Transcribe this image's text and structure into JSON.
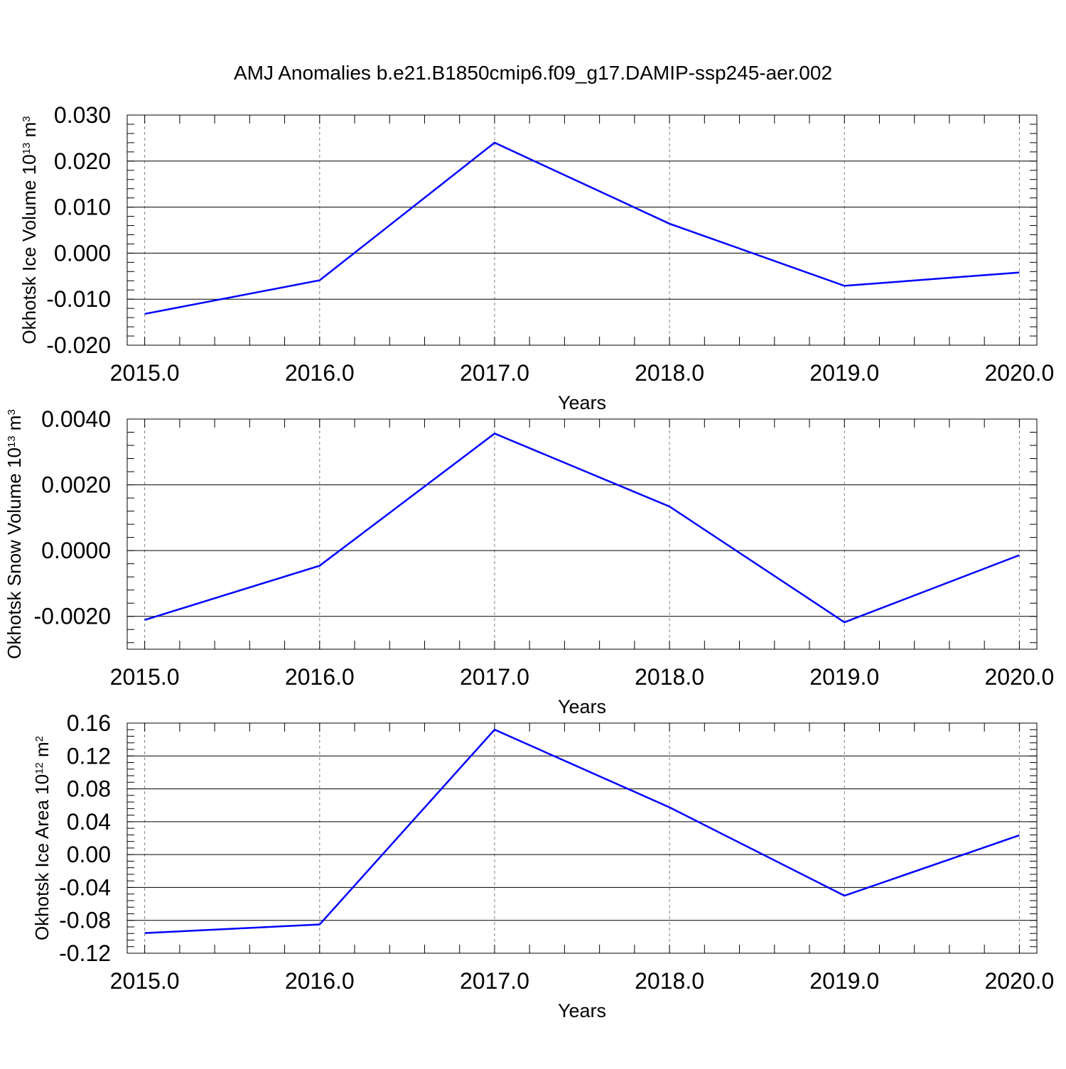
{
  "title": "AMJ Anomalies b.e21.B1850cmip6.f09_g17.DAMIP-ssp245-aer.002",
  "colors": {
    "line": "#0000ff",
    "axes": "#000000",
    "grid": "#7f7f7f",
    "background": "#ffffff"
  },
  "chart_data": [
    {
      "type": "line",
      "xlabel": "Years",
      "ylabel": {
        "base": "Okhotsk Ice Volume 10",
        "exp": "13",
        "unit": " m",
        "unit_exp": "3"
      },
      "x": [
        2015,
        2016,
        2017,
        2018,
        2019,
        2020
      ],
      "x_ticks": [
        "2015.0",
        "2016.0",
        "2017.0",
        "2018.0",
        "2019.0",
        "2020.0"
      ],
      "xlim": [
        2014.9,
        2020.1
      ],
      "ylim": [
        -0.02,
        0.03
      ],
      "y_ticks": [
        -0.02,
        -0.01,
        0.0,
        0.01,
        0.02,
        0.03
      ],
      "y_tick_labels": [
        "-0.020",
        "-0.010",
        "0.000",
        "0.010",
        "0.020",
        "0.030"
      ],
      "y_minor_step": 0.002,
      "vertical_grid": true,
      "series": [
        {
          "values": [
            -0.0132,
            -0.0059,
            0.024,
            0.0064,
            -0.0071,
            -0.0042
          ]
        }
      ]
    },
    {
      "type": "line",
      "xlabel": "Years",
      "ylabel": {
        "base": "Okhotsk Snow Volume 10",
        "exp": "13",
        "unit": " m",
        "unit_exp": "3"
      },
      "x": [
        2015,
        2016,
        2017,
        2018,
        2019,
        2020
      ],
      "x_ticks": [
        "2015.0",
        "2016.0",
        "2017.0",
        "2018.0",
        "2019.0",
        "2020.0"
      ],
      "xlim": [
        2014.9,
        2020.1
      ],
      "ylim": [
        -0.003,
        0.004
      ],
      "y_ticks": [
        -0.002,
        0.0,
        0.002,
        0.004
      ],
      "y_tick_labels": [
        "-0.0020",
        "0.0000",
        "0.0020",
        "0.0040"
      ],
      "y_minor_step": 0.0004,
      "vertical_grid": true,
      "series": [
        {
          "values": [
            -0.00211,
            -0.00046,
            0.00356,
            0.00134,
            -0.00218,
            -0.00014
          ]
        }
      ]
    },
    {
      "type": "line",
      "xlabel": "Years",
      "ylabel": {
        "base": "Okhotsk Ice Area 10",
        "exp": "12",
        "unit": " m",
        "unit_exp": "2"
      },
      "x": [
        2015,
        2016,
        2017,
        2018,
        2019,
        2020
      ],
      "x_ticks": [
        "2015.0",
        "2016.0",
        "2017.0",
        "2018.0",
        "2019.0",
        "2020.0"
      ],
      "xlim": [
        2014.9,
        2020.1
      ],
      "ylim": [
        -0.12,
        0.16
      ],
      "y_ticks": [
        -0.12,
        -0.08,
        -0.04,
        0.0,
        0.04,
        0.08,
        0.12,
        0.16
      ],
      "y_tick_labels": [
        "-0.12",
        "-0.08",
        "-0.04",
        "0.00",
        "0.04",
        "0.08",
        "0.12",
        "0.16"
      ],
      "y_minor_step": 0.008,
      "vertical_grid": true,
      "series": [
        {
          "values": [
            -0.0955,
            -0.085,
            0.152,
            0.0575,
            -0.05,
            0.0235
          ]
        }
      ]
    }
  ]
}
